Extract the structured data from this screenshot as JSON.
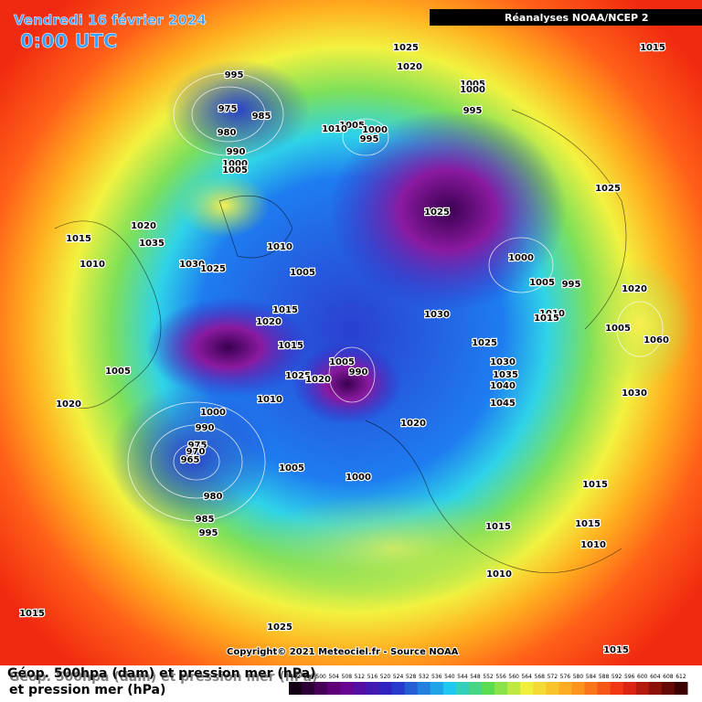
{
  "header": {
    "date": "Vendredi 16 février 2024",
    "time": "0:00 UTC",
    "source": "Réanalyses NOAA/NCEP 2"
  },
  "footer": {
    "copyright": "Copyright© 2021 Meteociel.fr - Source NOAA",
    "legend_line1": "Géop. 500hpa (dam) et pression mer (hPa)",
    "legend_line2": "et pression mer (hPa)"
  },
  "scale": {
    "labels": [
      492,
      496,
      500,
      504,
      508,
      512,
      516,
      520,
      524,
      528,
      532,
      536,
      540,
      544,
      548,
      552,
      556,
      560,
      564,
      568,
      572,
      576,
      580,
      584,
      588,
      592,
      596,
      600,
      604,
      608,
      612
    ]
  },
  "isobar_labels": [
    1025,
    1020,
    1015,
    995,
    1005,
    1000,
    975,
    985,
    995,
    1005,
    1010,
    1000,
    980,
    995,
    990,
    1000,
    1005,
    1025,
    1025,
    1020,
    1015,
    1035,
    1010,
    1000,
    1010,
    1030,
    1025,
    1005,
    1005,
    995,
    1020,
    1015,
    1020,
    1030,
    1010,
    1015,
    1005,
    1060,
    1015,
    1025,
    1030,
    1005,
    990,
    1005,
    1035,
    1025,
    1020,
    1040,
    1030,
    1010,
    1045,
    1020,
    1000,
    1020,
    990,
    975,
    970,
    965,
    1005,
    1000,
    1015,
    980,
    985,
    995,
    1015,
    1015,
    1010,
    1010,
    1015,
    1025,
    1015
  ]
}
